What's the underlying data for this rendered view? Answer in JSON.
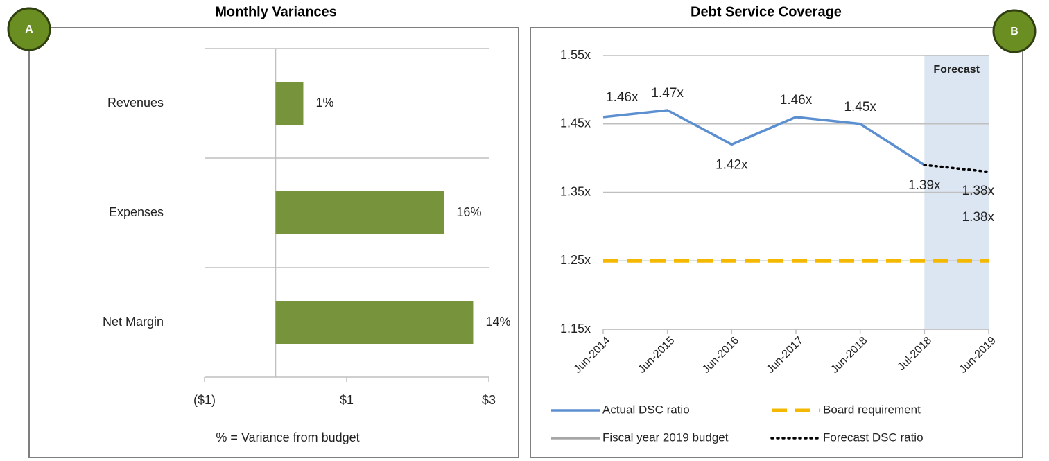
{
  "badges": [
    "A",
    "B"
  ],
  "chart_data": [
    {
      "type": "bar",
      "orientation": "horizontal",
      "title": "Monthly Variances",
      "categories": [
        "Revenues",
        "Expenses",
        "Net Margin"
      ],
      "values": [
        0.39,
        2.37,
        2.78
      ],
      "data_labels": [
        "1%",
        "16%",
        "14%"
      ],
      "color": "#77933c",
      "xlim": [
        -1,
        3
      ],
      "xticks": [
        {
          "value": -1,
          "label": "($1)"
        },
        {
          "value": 1,
          "label": "$1"
        },
        {
          "value": 3,
          "label": "$3"
        }
      ],
      "note": "% = Variance from budget"
    },
    {
      "type": "line",
      "title": "Debt Service Coverage",
      "categories": [
        "Jun-2014",
        "Jun-2015",
        "Jun-2016",
        "Jun-2017",
        "Jun-2018",
        "Jul-2018",
        "Jun-2019"
      ],
      "series": [
        {
          "name": "Actual DSC ratio",
          "color": "#5b8fd0",
          "dash": "solid",
          "values": [
            1.46,
            1.47,
            1.42,
            1.46,
            1.45,
            1.39,
            null
          ],
          "value_labels": [
            "1.46x",
            "1.47x",
            "1.42x",
            "1.46x",
            "1.45x",
            "1.39x",
            null
          ]
        },
        {
          "name": "Board requirement",
          "color": "#f5b800",
          "dash": "dashed",
          "values": [
            1.25,
            1.25,
            1.25,
            1.25,
            1.25,
            1.25,
            1.25
          ]
        },
        {
          "name": "Fiscal year 2019 budget",
          "color": "#a6a6a6",
          "dash": "solid",
          "values": [
            null,
            null,
            null,
            null,
            null,
            null,
            1.38
          ],
          "value_labels": [
            null,
            null,
            null,
            null,
            null,
            null,
            "1.38x"
          ]
        },
        {
          "name": "Forecast DSC ratio",
          "color": "#000000",
          "dash": "dotted",
          "values": [
            null,
            null,
            null,
            null,
            null,
            1.39,
            1.38
          ],
          "value_labels": [
            null,
            null,
            null,
            null,
            null,
            null,
            "1.38x"
          ]
        }
      ],
      "ylim": [
        1.15,
        1.55
      ],
      "yticks": [
        {
          "value": 1.15,
          "label": "1.15x"
        },
        {
          "value": 1.25,
          "label": "1.25x"
        },
        {
          "value": 1.35,
          "label": "1.35x"
        },
        {
          "value": 1.45,
          "label": "1.45x"
        },
        {
          "value": 1.55,
          "label": "1.55x"
        }
      ],
      "grid": true,
      "annotation": "Forecast"
    }
  ]
}
